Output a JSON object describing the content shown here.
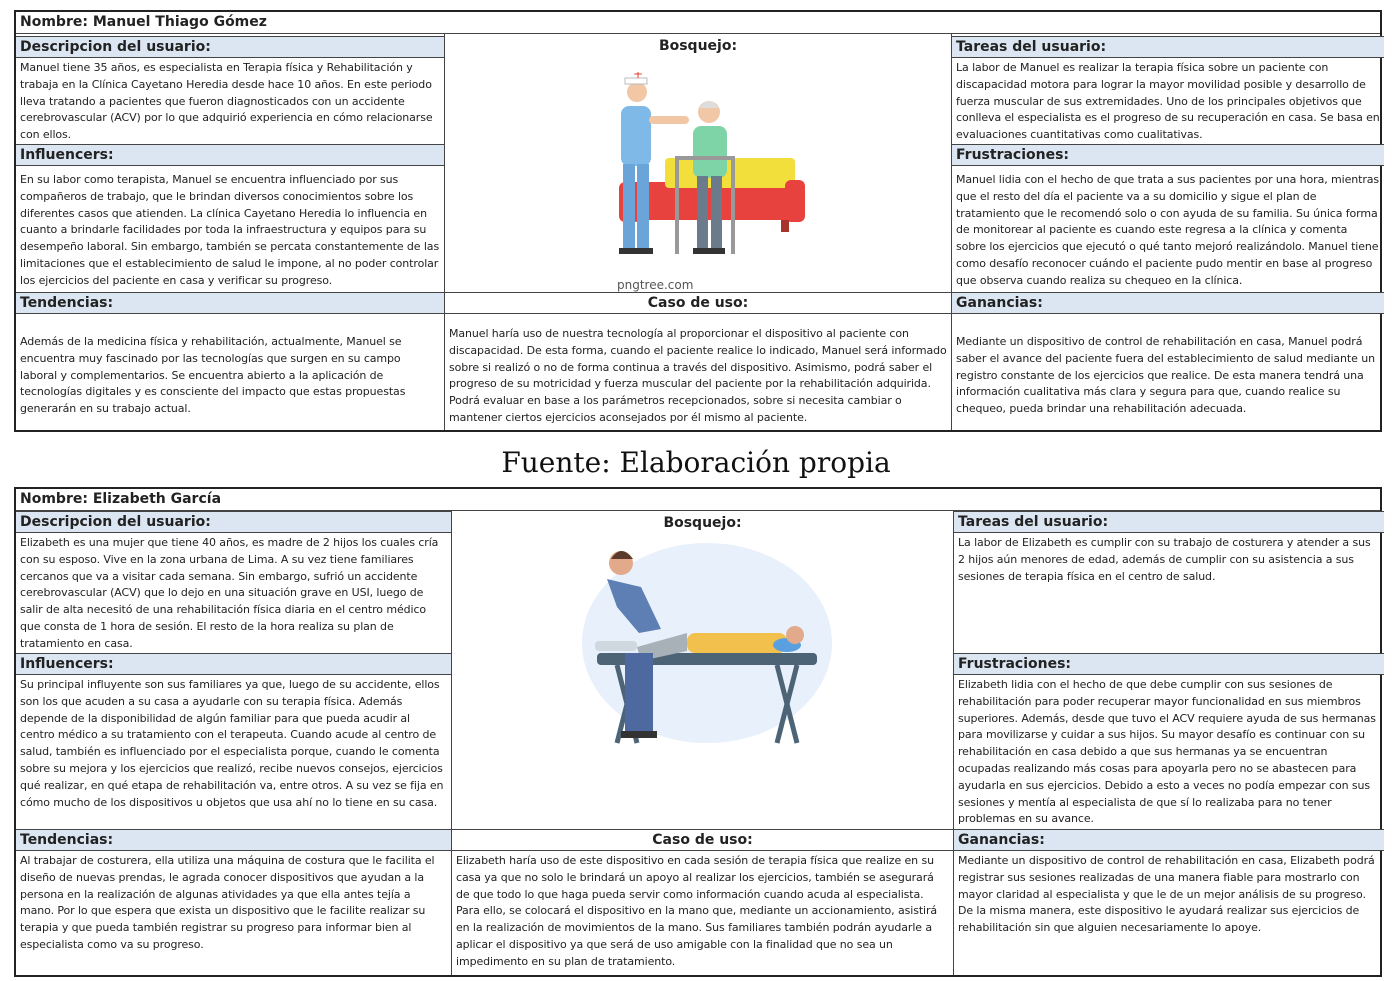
{
  "header_labels": {
    "descripcion": "Descripcion del usuario:",
    "bosquejo": "Bosquejo:",
    "tareas": "Tareas del usuario:",
    "influencers": "Influencers:",
    "frustraciones": "Frustraciones:",
    "tendencias": "Tendencias:",
    "caso": "Caso de uso:",
    "ganancias": "Ganancias:"
  },
  "caption": "Fuente: Elaboración propia",
  "persona1": {
    "name": "Nombre: Manuel Thiago Gómez",
    "descripcion": "Manuel tiene 35 años, es especialista en Terapia física y Rehabilitación y trabaja en la Clínica Cayetano Heredia desde hace 10 años. En este periodo lleva tratando a pacientes que fueron diagnosticados con un accidente cerebrovascular (ACV) por lo que adquirió experiencia en cómo relacionarse con ellos.",
    "tareas": "La labor de Manuel es realizar la terapia física sobre un paciente con discapacidad motora para lograr la mayor movilidad posible y desarrollo de fuerza muscular de sus extremidades. Uno de los principales objetivos que conlleva el especialista es el progreso de su recuperación en casa. Se basa en evaluaciones cuantitativas como cualitativas.",
    "influencers": "En su labor como terapista, Manuel se encuentra influenciado por sus compañeros de trabajo, que le brindan diversos conocimientos sobre los diferentes casos que atienden. La clínica Cayetano Heredia lo influencia en cuanto a brindarle facilidades por toda la infraestructura y equipos para su desempeño laboral. Sin embargo, también se percata constantemente de las limitaciones que el establecimiento de salud le impone, al no poder controlar los ejercicios del paciente en casa y verificar su progreso.",
    "frustraciones": "Manuel lidia con el hecho de que trata a sus pacientes por una hora, mientras que el resto del día el paciente va a su domicilio y sigue el plan de tratamiento que le recomendó solo o con ayuda de su familia. Su única forma de monitorear al paciente es cuando este regresa a la clínica y comenta sobre los ejercicios que ejecutó o qué tanto mejoró realizándolo. Manuel tiene como desafío reconocer cuándo el paciente pudo mentir en base al progreso que observa cuando realiza su chequeo en la clínica.",
    "tendencias": "Además de la medicina física y rehabilitación, actualmente, Manuel se encuentra muy fascinado por las tecnologías que surgen en su campo laboral y complementarios. Se encuentra abierto a la aplicación de tecnologías digitales y es consciente del impacto que estas propuestas generarán en su trabajo actual.",
    "caso": "Manuel haría uso de nuestra tecnología al proporcionar el dispositivo al paciente con discapacidad. De esta forma, cuando el paciente realice lo indicado, Manuel será informado sobre si realizó o no de forma continua a través del dispositivo. Asimismo, podrá saber el progreso de su motricidad y fuerza muscular del paciente por la rehabilitación adquirida. Podrá evaluar en base a los parámetros recepcionados, sobre si necesita cambiar o mantener ciertos ejercicios aconsejados por él mismo al paciente.",
    "ganancias": "Mediante un dispositivo de control de rehabilitación en casa, Manuel podrá saber el avance del paciente fuera del establecimiento de salud mediante un registro constante de los ejercicios que realice. De esta manera tendrá una información cualitativa más clara y segura para que, cuando realice su chequeo, pueda brindar una rehabilitación adecuada.",
    "watermark": "pngtree.com"
  },
  "persona2": {
    "name": "Nombre: Elizabeth García",
    "descripcion": "Elizabeth es una mujer que tiene 40 años, es madre de 2 hijos los cuales cría con su esposo. Vive en la zona urbana de Lima. A su vez tiene familiares cercanos que va a visitar cada semana. Sin embargo, sufrió un accidente cerebrovascular (ACV) que lo dejo en una situación grave en USI, luego de salir de alta necesitó de una rehabilitación física diaria en el centro médico que consta de 1 hora de sesión. El resto de la hora realiza su plan de tratamiento en casa.",
    "tareas": "La labor de Elizabeth es cumplir con su trabajo de costurera y atender a sus 2 hijos aún menores de edad, además de cumplir con su asistencia a sus sesiones de terapia física en el centro de salud.",
    "influencers": "Su principal influyente son sus familiares ya que, luego de su accidente, ellos son los que acuden a su casa a ayudarle con su terapia física. Además depende de la disponibilidad de algún familiar para que pueda acudir al centro médico a su tratamiento con el terapeuta. Cuando acude al centro de salud, también es influenciado por el especialista porque, cuando le comenta sobre su mejora y los ejercicios que realizó, recibe nuevos consejos, ejercicios qué realizar, en qué etapa de rehabilitación va, entre otros. A su vez se fija en cómo mucho de los dispositivos u objetos que usa ahí no lo tiene en su casa.",
    "frustraciones": "Elizabeth lidia con el hecho de que debe cumplir con sus sesiones de rehabilitación para poder recuperar mayor funcionalidad en sus miembros superiores. Además, desde que tuvo el ACV requiere ayuda de sus hermanas para movilizarse y cuidar a sus hijos. Su mayor desafío es continuar con su rehabilitación en casa debido a que sus hermanas ya se encuentran ocupadas realizando más cosas para apoyarla pero no se abastecen para ayudarla en sus ejercicios. Debido a esto a veces no podía empezar con sus sesiones y mentía al especialista de que sí lo realizaba para no tener problemas en su avance.",
    "tendencias": "Al trabajar de costurera, ella utiliza una máquina de costura que le facilita el diseño de nuevas prendas, le agrada conocer dispositivos que ayudan a la persona en la realización de algunas atividades ya que ella antes tejía a mano. Por lo que espera que exista un dispositivo que le facilite realizar su terapia y que pueda también registrar su progreso para informar bien al especialista como va su progreso.",
    "caso": "Elizabeth haría uso de este dispositivo en cada sesión de terapia física que realize en su casa ya que no solo le brindará un apoyo al realizar los ejercicios, también se asegurará de que todo lo que haga pueda servir como información cuando acuda al especialista. Para ello, se colocará el dispositivo en la mano que, mediante un accionamiento, asistirá en la realización de movimientos de la mano. Sus familiares también podrán ayudarle a aplicar el dispositivo ya que será de uso amigable con la finalidad que no sea un impedimento en su plan de tratamiento.",
    "ganancias": "Mediante un dispositivo de control de rehabilitación en casa, Elizabeth podrá registrar sus sesiones realizadas de una manera fiable para mostrarlo con mayor claridad al especialista y que le de un mejor análisis de su progreso. De la misma manera, este dispositivo le ayudará realizar sus ejercicios de rehabilitación sin que alguien necesariamente lo apoye."
  }
}
